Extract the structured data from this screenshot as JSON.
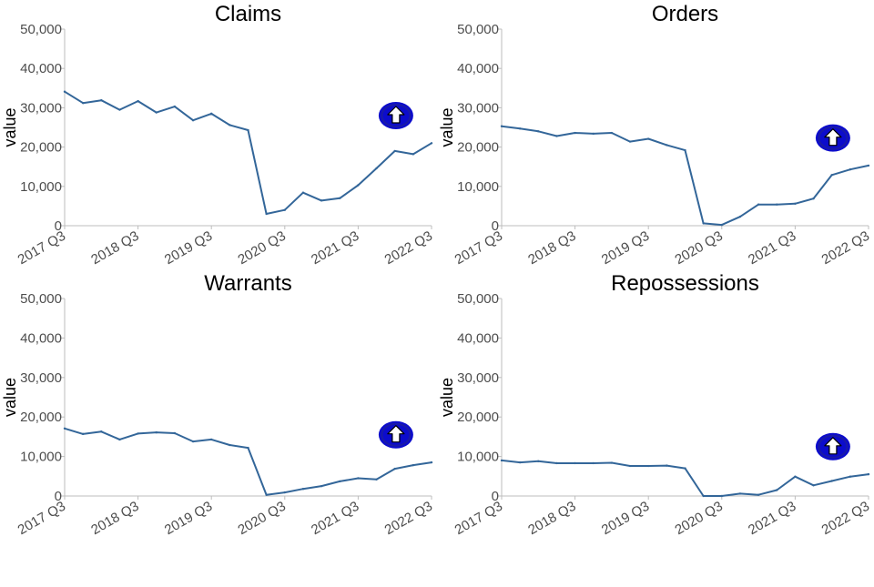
{
  "chart_data": [
    {
      "type": "line",
      "title": "Claims",
      "ylabel": "value",
      "xlabel": "",
      "ylim": [
        0,
        50000
      ],
      "yticks": [
        "0",
        "10,000",
        "20,000",
        "30,000",
        "40,000",
        "50,000"
      ],
      "xticks": [
        "2017 Q3",
        "2018 Q3",
        "2019 Q3",
        "2020 Q3",
        "2021 Q3",
        "2022 Q3"
      ],
      "x": [
        "2017 Q3",
        "2017 Q4",
        "2018 Q1",
        "2018 Q2",
        "2018 Q3",
        "2018 Q4",
        "2019 Q1",
        "2019 Q2",
        "2019 Q3",
        "2019 Q4",
        "2020 Q1",
        "2020 Q2",
        "2020 Q3",
        "2020 Q4",
        "2021 Q1",
        "2021 Q2",
        "2021 Q3",
        "2021 Q4",
        "2022 Q1",
        "2022 Q2",
        "2022 Q3"
      ],
      "values": [
        34100,
        31200,
        31900,
        29500,
        31700,
        28800,
        30300,
        26800,
        28500,
        25600,
        24300,
        3000,
        4000,
        8400,
        6400,
        7000,
        10300,
        14600,
        19000,
        18200,
        21000
      ],
      "trend_icon": "up-arrow-icon",
      "trend_icon_value": 28000
    },
    {
      "type": "line",
      "title": "Orders",
      "ylabel": "value",
      "xlabel": "",
      "ylim": [
        0,
        50000
      ],
      "yticks": [
        "0",
        "10,000",
        "20,000",
        "30,000",
        "40,000",
        "50,000"
      ],
      "xticks": [
        "2017 Q3",
        "2018 Q3",
        "2019 Q3",
        "2020 Q3",
        "2021 Q3",
        "2022 Q3"
      ],
      "x": [
        "2017 Q3",
        "2017 Q4",
        "2018 Q1",
        "2018 Q2",
        "2018 Q3",
        "2018 Q4",
        "2019 Q1",
        "2019 Q2",
        "2019 Q3",
        "2019 Q4",
        "2020 Q1",
        "2020 Q2",
        "2020 Q3",
        "2020 Q4",
        "2021 Q1",
        "2021 Q2",
        "2021 Q3",
        "2021 Q4",
        "2022 Q1",
        "2022 Q2",
        "2022 Q3"
      ],
      "values": [
        25300,
        24700,
        24000,
        22800,
        23600,
        23400,
        23600,
        21400,
        22100,
        20500,
        19200,
        600,
        200,
        2300,
        5400,
        5400,
        5600,
        6900,
        12900,
        14300,
        15300
      ],
      "trend_icon": "up-arrow-icon",
      "trend_icon_value": 22300
    },
    {
      "type": "line",
      "title": "Warrants",
      "ylabel": "value",
      "xlabel": "",
      "ylim": [
        0,
        50000
      ],
      "yticks": [
        "0",
        "10,000",
        "20,000",
        "30,000",
        "40,000",
        "50,000"
      ],
      "xticks": [
        "2017 Q3",
        "2018 Q3",
        "2019 Q3",
        "2020 Q3",
        "2021 Q3",
        "2022 Q3"
      ],
      "x": [
        "2017 Q3",
        "2017 Q4",
        "2018 Q1",
        "2018 Q2",
        "2018 Q3",
        "2018 Q4",
        "2019 Q1",
        "2019 Q2",
        "2019 Q3",
        "2019 Q4",
        "2020 Q1",
        "2020 Q2",
        "2020 Q3",
        "2020 Q4",
        "2021 Q1",
        "2021 Q2",
        "2021 Q3",
        "2021 Q4",
        "2022 Q1",
        "2022 Q2",
        "2022 Q3"
      ],
      "values": [
        17100,
        15700,
        16300,
        14300,
        15800,
        16100,
        15900,
        13800,
        14300,
        12900,
        12200,
        300,
        900,
        1800,
        2500,
        3700,
        4500,
        4200,
        6900,
        7800,
        8500
      ],
      "trend_icon": "up-arrow-icon",
      "trend_icon_value": 15500
    },
    {
      "type": "line",
      "title": "Repossessions",
      "ylabel": "value",
      "xlabel": "",
      "ylim": [
        0,
        50000
      ],
      "yticks": [
        "0",
        "10,000",
        "20,000",
        "30,000",
        "40,000",
        "50,000"
      ],
      "xticks": [
        "2017 Q3",
        "2018 Q3",
        "2019 Q3",
        "2020 Q3",
        "2021 Q3",
        "2022 Q3"
      ],
      "x": [
        "2017 Q3",
        "2017 Q4",
        "2018 Q1",
        "2018 Q2",
        "2018 Q3",
        "2018 Q4",
        "2019 Q1",
        "2019 Q2",
        "2019 Q3",
        "2019 Q4",
        "2020 Q1",
        "2020 Q2",
        "2020 Q3",
        "2020 Q4",
        "2021 Q1",
        "2021 Q2",
        "2021 Q3",
        "2021 Q4",
        "2022 Q1",
        "2022 Q2",
        "2022 Q3"
      ],
      "values": [
        9000,
        8500,
        8800,
        8300,
        8300,
        8300,
        8400,
        7600,
        7600,
        7700,
        7000,
        0,
        0,
        600,
        300,
        1500,
        4900,
        2700,
        3800,
        4900,
        5500
      ],
      "trend_icon": "up-arrow-icon",
      "trend_icon_value": 12500
    }
  ],
  "colors": {
    "series_line": "#336699",
    "icon_outer": "#0c0ccc",
    "icon_ring": "#1a1aa6",
    "icon_arrow": "#ffffff"
  }
}
